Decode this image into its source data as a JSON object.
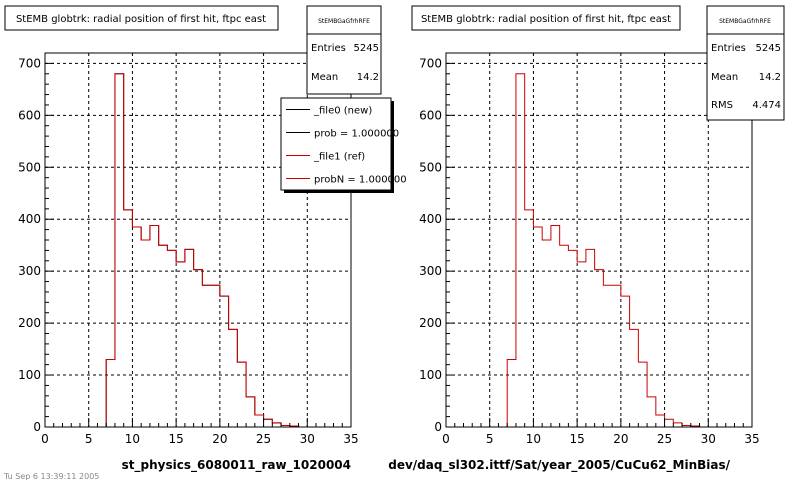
{
  "colors": {
    "new": "#000000",
    "ref": "#cc0000"
  },
  "corner_text": "Tu Sep 6 13:39:11 2005",
  "chart_data": [
    {
      "type": "histogram",
      "title": "StEMB globtrk: radial position of first hit, ftpc east",
      "xlabel": "st_physics_6080011_raw_1020004",
      "ylabel": "",
      "xlim": [
        0,
        35
      ],
      "ylim": [
        0,
        720
      ],
      "x_ticks": [
        0,
        5,
        10,
        15,
        20,
        25,
        30,
        35
      ],
      "y_ticks": [
        0,
        100,
        200,
        300,
        400,
        500,
        600,
        700
      ],
      "grid": true,
      "bin_edges": [
        0,
        1,
        2,
        3,
        4,
        5,
        6,
        7,
        8,
        9,
        10,
        11,
        12,
        13,
        14,
        15,
        16,
        17,
        18,
        19,
        20,
        21,
        22,
        23,
        24,
        25,
        26,
        27,
        28,
        29,
        30,
        31,
        32,
        33,
        34,
        35
      ],
      "series": [
        {
          "name": "_file0 (new)",
          "color": "#000000",
          "values": [
            0,
            0,
            0,
            0,
            0,
            0,
            0,
            130,
            680,
            418,
            385,
            360,
            388,
            350,
            340,
            318,
            342,
            303,
            273,
            273,
            252,
            188,
            125,
            58,
            23,
            15,
            8,
            3,
            2,
            0,
            0,
            0,
            0,
            0,
            0
          ]
        },
        {
          "name": "_file1 (ref)",
          "color": "#cc0000",
          "values": [
            0,
            0,
            0,
            0,
            0,
            0,
            0,
            130,
            680,
            418,
            385,
            360,
            388,
            350,
            340,
            318,
            342,
            303,
            273,
            273,
            252,
            188,
            125,
            58,
            23,
            15,
            8,
            3,
            2,
            0,
            0,
            0,
            0,
            0,
            0
          ]
        }
      ],
      "stats": {
        "name": "StEMBGaGfrhRFE",
        "entries": "5245",
        "mean": "14.2"
      },
      "legend": {
        "position": "top-right",
        "entries": [
          {
            "label": "_file0 (new)",
            "color": "#000000"
          },
          {
            "label": "prob = 1.000000",
            "color": "#000000"
          },
          {
            "label": "_file1 (ref)",
            "color": "#cc0000"
          },
          {
            "label": "probN = 1.000000",
            "color": "#cc0000"
          }
        ]
      }
    },
    {
      "type": "histogram",
      "title": "StEMB globtrk: radial position of first hit, ftpc east",
      "xlabel": "dev/daq_sl302.ittf/Sat/year_2005/CuCu62_MinBias/",
      "ylabel": "",
      "xlim": [
        0,
        35
      ],
      "ylim": [
        0,
        720
      ],
      "x_ticks": [
        0,
        5,
        10,
        15,
        20,
        25,
        30,
        35
      ],
      "y_ticks": [
        0,
        100,
        200,
        300,
        400,
        500,
        600,
        700
      ],
      "grid": true,
      "bin_edges": [
        0,
        1,
        2,
        3,
        4,
        5,
        6,
        7,
        8,
        9,
        10,
        11,
        12,
        13,
        14,
        15,
        16,
        17,
        18,
        19,
        20,
        21,
        22,
        23,
        24,
        25,
        26,
        27,
        28,
        29,
        30,
        31,
        32,
        33,
        34,
        35
      ],
      "series": [
        {
          "name": "",
          "color": "#cc0000",
          "values": [
            0,
            0,
            0,
            0,
            0,
            0,
            0,
            130,
            680,
            418,
            385,
            360,
            388,
            350,
            340,
            318,
            342,
            303,
            273,
            273,
            252,
            188,
            125,
            58,
            23,
            15,
            8,
            3,
            2,
            0,
            0,
            0,
            0,
            0,
            0
          ]
        }
      ],
      "stats": {
        "name": "StEMBGaGfrhRFE",
        "entries": "5245",
        "mean": "14.2",
        "rms": "4.474"
      }
    }
  ]
}
